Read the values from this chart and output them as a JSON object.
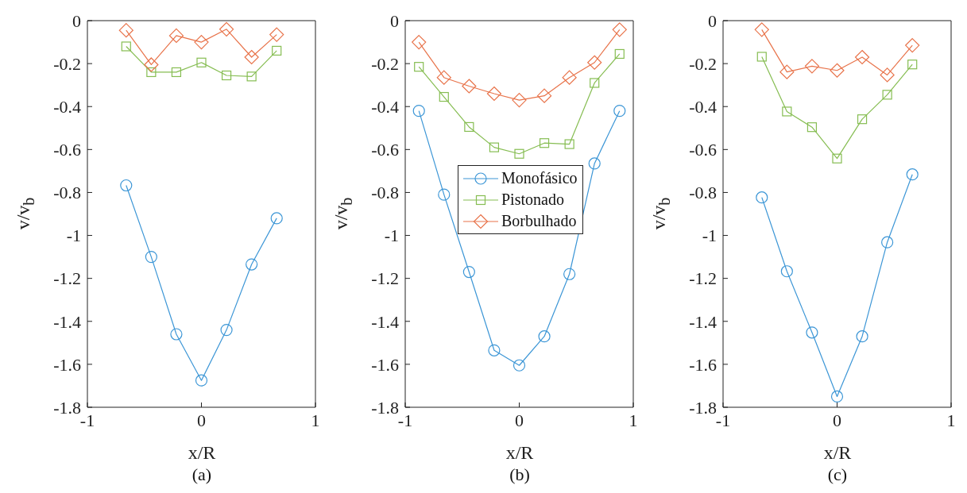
{
  "chart_data": [
    {
      "type": "line",
      "xlabel": "x/R",
      "ylabel": "v/v$_{b}$",
      "annotations": [
        "(a)"
      ],
      "x": [
        -0.66,
        -0.44,
        -0.22,
        0,
        0.22,
        0.44,
        0.66
      ],
      "xlim": [
        -1,
        1
      ],
      "xticks": [
        -1,
        0,
        1
      ],
      "ylim": [
        -1.8,
        0
      ],
      "yticks": [
        -1.8,
        -1.6,
        -1.4,
        -1.2,
        -1,
        -0.8,
        -0.6,
        -0.4,
        -0.2,
        0
      ],
      "grid": false,
      "legend": false,
      "line_style": "solid",
      "series": [
        {
          "color": "#3c96d6",
          "marker": "circle",
          "values": [
            -0.767,
            -1.1,
            -1.46,
            -1.675,
            -1.44,
            -1.135,
            -0.92
          ]
        },
        {
          "color": "#86bd52",
          "marker": "square",
          "values": [
            -0.12,
            -0.24,
            -0.24,
            -0.195,
            -0.255,
            -0.26,
            -0.14
          ]
        },
        {
          "color": "#e8734a",
          "marker": "diamond",
          "values": [
            -0.045,
            -0.205,
            -0.07,
            -0.1,
            -0.04,
            -0.17,
            -0.065
          ]
        }
      ]
    },
    {
      "type": "line",
      "xlabel": "x/R",
      "ylabel": "v/v$_{b}$",
      "annotations": [
        "(b)"
      ],
      "x": [
        -0.88,
        -0.66,
        -0.44,
        -0.22,
        0,
        0.22,
        0.44,
        0.66,
        0.88
      ],
      "xlim": [
        -1,
        1
      ],
      "xticks": [
        -1,
        0,
        1
      ],
      "ylim": [
        -1.8,
        0
      ],
      "yticks": [
        -1.8,
        -1.6,
        -1.4,
        -1.2,
        -1,
        -0.8,
        -0.6,
        -0.4,
        -0.2,
        0
      ],
      "grid": false,
      "legend": "center",
      "line_style": "solid",
      "series": [
        {
          "name": "Monofásico",
          "color": "#3c96d6",
          "marker": "circle",
          "values": [
            -0.42,
            -0.81,
            -1.17,
            -1.535,
            -1.605,
            -1.47,
            -1.18,
            -0.665,
            -0.42
          ]
        },
        {
          "name": "Pistonado",
          "color": "#86bd52",
          "marker": "square",
          "values": [
            -0.215,
            -0.355,
            -0.495,
            -0.59,
            -0.62,
            -0.57,
            -0.575,
            -0.29,
            -0.155
          ]
        },
        {
          "name": "Borbulhado",
          "color": "#e8734a",
          "marker": "diamond",
          "values": [
            -0.1,
            -0.265,
            -0.305,
            -0.34,
            -0.37,
            -0.35,
            -0.265,
            -0.195,
            -0.042
          ]
        }
      ]
    },
    {
      "type": "line",
      "xlabel": "x/R",
      "ylabel": "v/v$_{b}$",
      "annotations": [
        "(c)"
      ],
      "x": [
        -0.66,
        -0.44,
        -0.22,
        0,
        0.22,
        0.44,
        0.66
      ],
      "xlim": [
        -1,
        1
      ],
      "xticks": [
        -1,
        0,
        1
      ],
      "ylim": [
        -1.8,
        0
      ],
      "yticks": [
        -1.8,
        -1.6,
        -1.4,
        -1.2,
        -1,
        -0.8,
        -0.6,
        -0.4,
        -0.2,
        0
      ],
      "grid": false,
      "legend": false,
      "line_style": "solid",
      "series": [
        {
          "color": "#3c96d6",
          "marker": "circle",
          "values": [
            -0.823,
            -1.167,
            -1.452,
            -1.75,
            -1.47,
            -1.032,
            -0.716
          ]
        },
        {
          "color": "#86bd52",
          "marker": "square",
          "values": [
            -0.168,
            -0.423,
            -0.496,
            -0.642,
            -0.459,
            -0.345,
            -0.204
          ]
        },
        {
          "color": "#e8734a",
          "marker": "diamond",
          "values": [
            -0.042,
            -0.239,
            -0.212,
            -0.232,
            -0.17,
            -0.253,
            -0.115
          ]
        }
      ]
    }
  ]
}
